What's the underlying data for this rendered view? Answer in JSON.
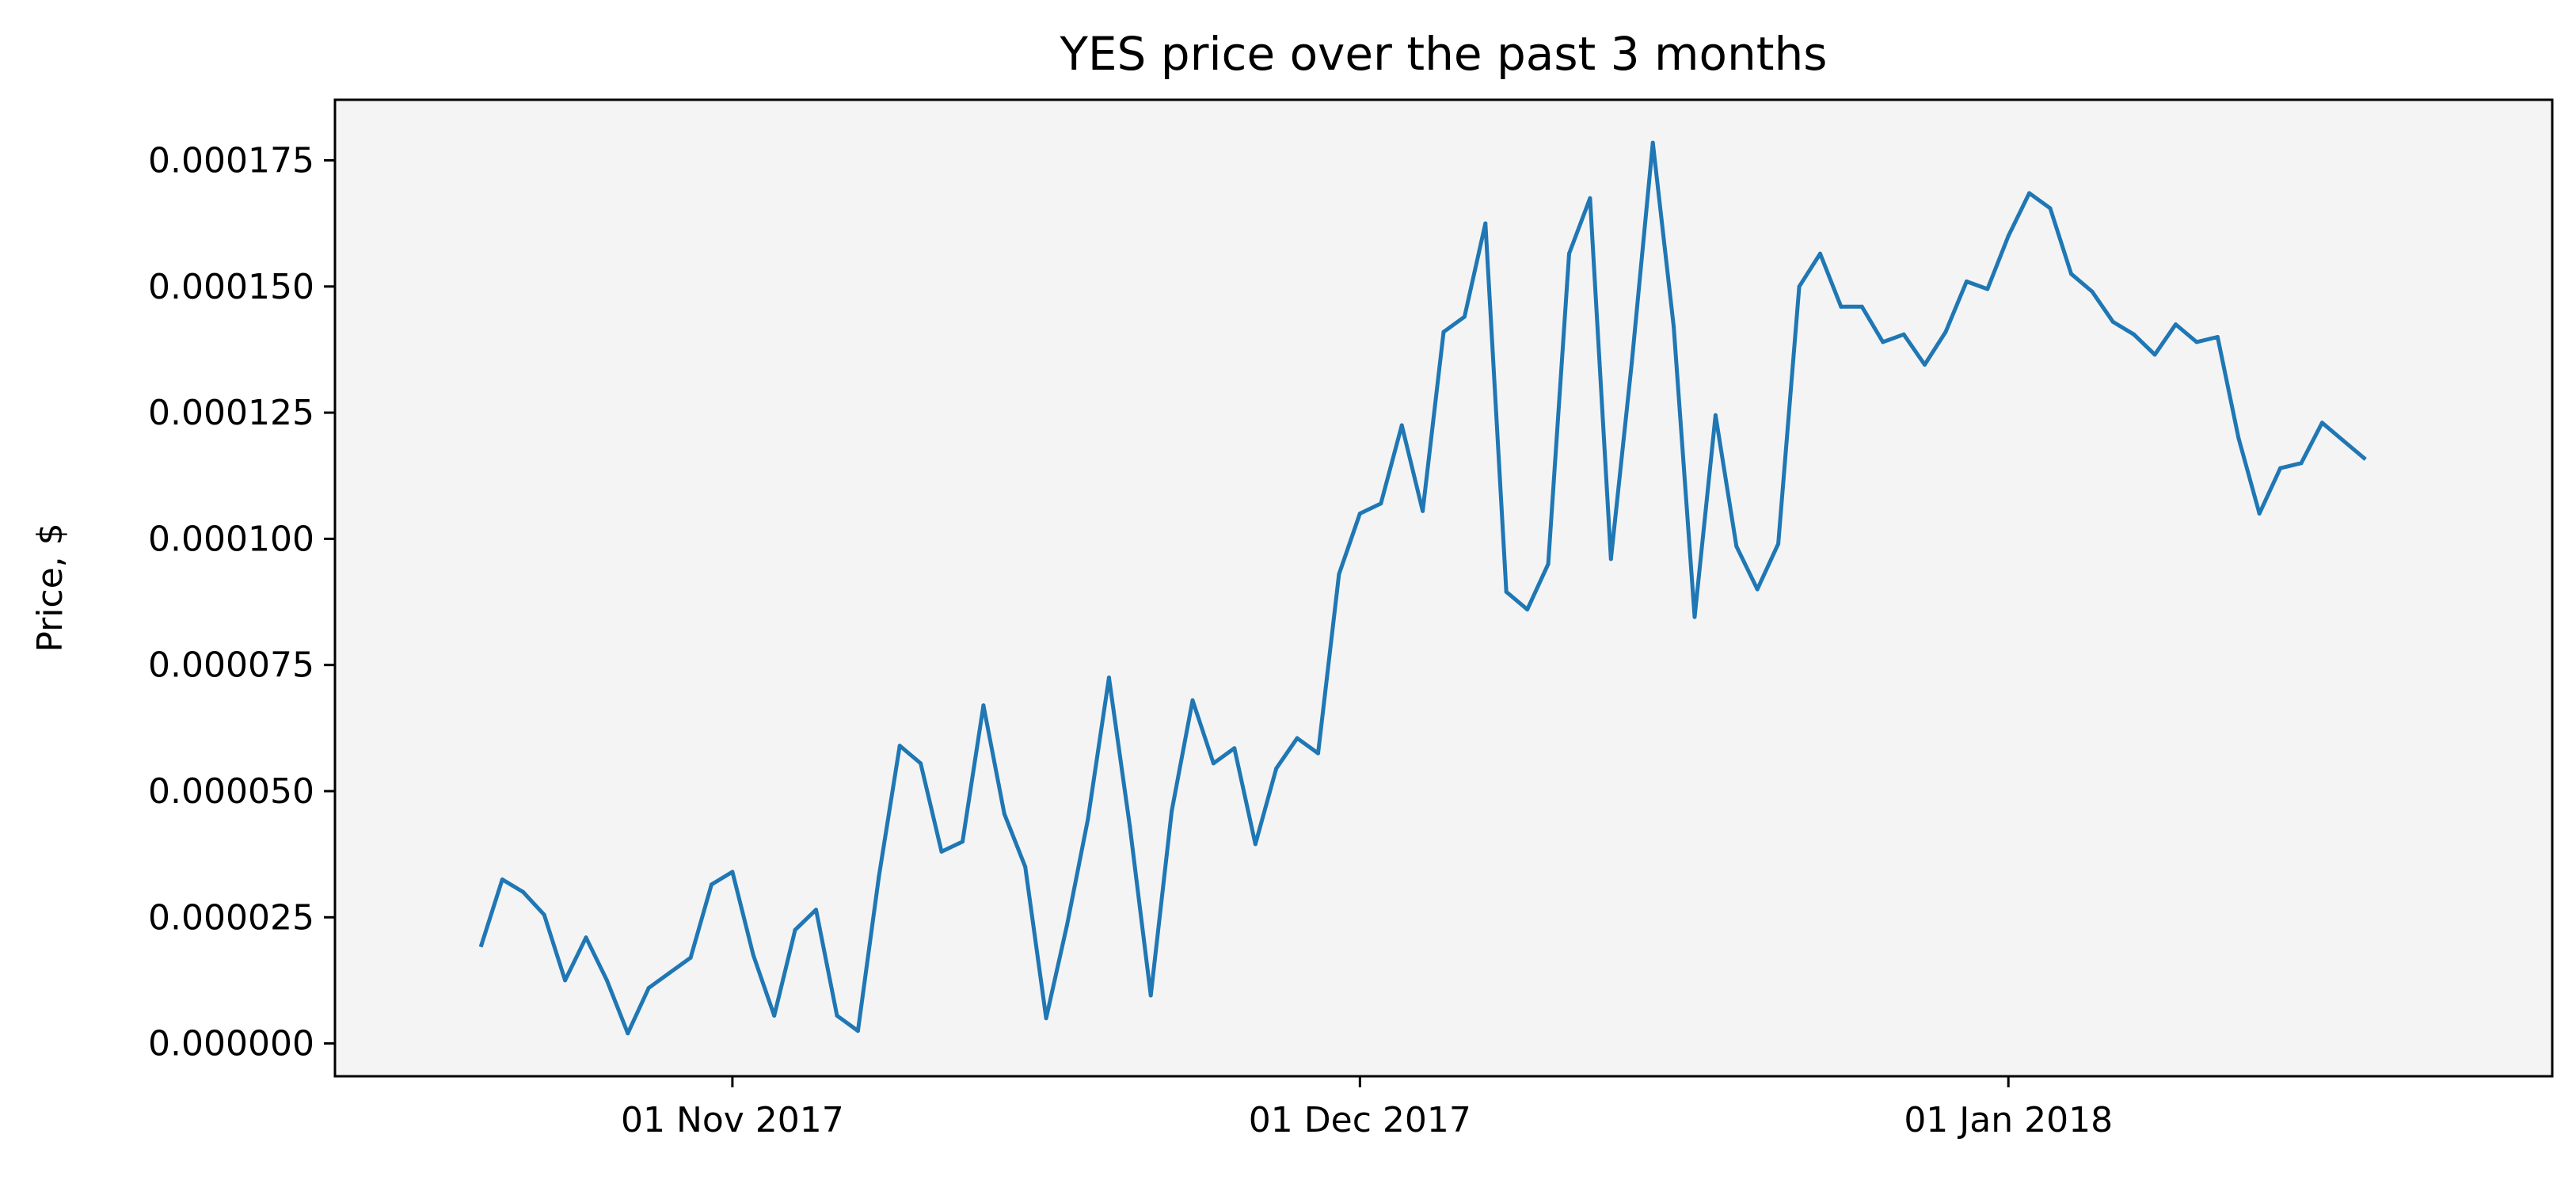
{
  "chart_data": {
    "type": "line",
    "title": "YES price over the past 3 months",
    "xlabel": "",
    "ylabel": "Price, $",
    "x_ticks": [
      {
        "date": "2017-11-01",
        "label": "01 Nov 2017"
      },
      {
        "date": "2017-12-01",
        "label": "01 Dec 2017"
      },
      {
        "date": "2018-01-01",
        "label": "01 Jan 2018"
      }
    ],
    "y_ticks": [
      {
        "value": 0.0,
        "label": "0.000000"
      },
      {
        "value": 2.5e-05,
        "label": "0.000025"
      },
      {
        "value": 5e-05,
        "label": "0.000050"
      },
      {
        "value": 7.5e-05,
        "label": "0.000075"
      },
      {
        "value": 0.0001,
        "label": "0.000100"
      },
      {
        "value": 0.000125,
        "label": "0.000125"
      },
      {
        "value": 0.00015,
        "label": "0.000150"
      },
      {
        "value": 0.000175,
        "label": "0.000175"
      }
    ],
    "xlim": [
      "2017-10-13",
      "2018-01-27"
    ],
    "ylim": [
      -6.5e-06,
      0.000187
    ],
    "grid": false,
    "colors": {
      "line": "#1f77b4",
      "plot_background": "#f4f4f4",
      "axes": "#000000"
    },
    "series": [
      {
        "points": [
          [
            "2017-10-20",
            1.95e-05
          ],
          [
            "2017-10-21",
            3.25e-05
          ],
          [
            "2017-10-22",
            3e-05
          ],
          [
            "2017-10-23",
            2.55e-05
          ],
          [
            "2017-10-24",
            1.25e-05
          ],
          [
            "2017-10-25",
            2.1e-05
          ],
          [
            "2017-10-26",
            1.25e-05
          ],
          [
            "2017-10-27",
            2e-06
          ],
          [
            "2017-10-28",
            1.1e-05
          ],
          [
            "2017-10-29",
            1.4e-05
          ],
          [
            "2017-10-30",
            1.7e-05
          ],
          [
            "2017-10-31",
            3.15e-05
          ],
          [
            "2017-11-01",
            3.4e-05
          ],
          [
            "2017-11-02",
            1.75e-05
          ],
          [
            "2017-11-03",
            5.5e-06
          ],
          [
            "2017-11-04",
            2.25e-05
          ],
          [
            "2017-11-05",
            2.65e-05
          ],
          [
            "2017-11-06",
            5.5e-06
          ],
          [
            "2017-11-07",
            2.5e-06
          ],
          [
            "2017-11-08",
            3.3e-05
          ],
          [
            "2017-11-09",
            5.9e-05
          ],
          [
            "2017-11-10",
            5.55e-05
          ],
          [
            "2017-11-11",
            3.8e-05
          ],
          [
            "2017-11-12",
            4e-05
          ],
          [
            "2017-11-13",
            6.7e-05
          ],
          [
            "2017-11-14",
            4.55e-05
          ],
          [
            "2017-11-15",
            3.5e-05
          ],
          [
            "2017-11-16",
            5e-06
          ],
          [
            "2017-11-17",
            2.35e-05
          ],
          [
            "2017-11-18",
            4.45e-05
          ],
          [
            "2017-11-19",
            7.25e-05
          ],
          [
            "2017-11-20",
            4.3e-05
          ],
          [
            "2017-11-21",
            9.5e-06
          ],
          [
            "2017-11-22",
            4.6e-05
          ],
          [
            "2017-11-23",
            6.8e-05
          ],
          [
            "2017-11-24",
            5.55e-05
          ],
          [
            "2017-11-25",
            5.85e-05
          ],
          [
            "2017-11-26",
            3.95e-05
          ],
          [
            "2017-11-27",
            5.45e-05
          ],
          [
            "2017-11-28",
            6.05e-05
          ],
          [
            "2017-11-29",
            5.75e-05
          ],
          [
            "2017-11-30",
            9.3e-05
          ],
          [
            "2017-12-01",
            0.000105
          ],
          [
            "2017-12-02",
            0.000107
          ],
          [
            "2017-12-03",
            0.0001225
          ],
          [
            "2017-12-04",
            0.0001055
          ],
          [
            "2017-12-05",
            0.000141
          ],
          [
            "2017-12-06",
            0.000144
          ],
          [
            "2017-12-07",
            0.0001625
          ],
          [
            "2017-12-08",
            8.95e-05
          ],
          [
            "2017-12-09",
            8.6e-05
          ],
          [
            "2017-12-10",
            9.5e-05
          ],
          [
            "2017-12-11",
            0.0001565
          ],
          [
            "2017-12-12",
            0.0001675
          ],
          [
            "2017-12-13",
            9.6e-05
          ],
          [
            "2017-12-14",
            0.000135
          ],
          [
            "2017-12-15",
            0.0001785
          ],
          [
            "2017-12-16",
            0.000142
          ],
          [
            "2017-12-17",
            8.45e-05
          ],
          [
            "2017-12-18",
            0.0001245
          ],
          [
            "2017-12-19",
            9.85e-05
          ],
          [
            "2017-12-20",
            9e-05
          ],
          [
            "2017-12-21",
            9.9e-05
          ],
          [
            "2017-12-22",
            0.00015
          ],
          [
            "2017-12-23",
            0.0001565
          ],
          [
            "2017-12-24",
            0.000146
          ],
          [
            "2017-12-25",
            0.000146
          ],
          [
            "2017-12-26",
            0.000139
          ],
          [
            "2017-12-27",
            0.0001405
          ],
          [
            "2017-12-28",
            0.0001345
          ],
          [
            "2017-12-29",
            0.000141
          ],
          [
            "2017-12-30",
            0.000151
          ],
          [
            "2017-12-31",
            0.0001495
          ],
          [
            "2018-01-01",
            0.00016
          ],
          [
            "2018-01-02",
            0.0001685
          ],
          [
            "2018-01-03",
            0.0001655
          ],
          [
            "2018-01-04",
            0.0001525
          ],
          [
            "2018-01-05",
            0.000149
          ],
          [
            "2018-01-06",
            0.000143
          ],
          [
            "2018-01-07",
            0.0001405
          ],
          [
            "2018-01-08",
            0.0001365
          ],
          [
            "2018-01-09",
            0.0001425
          ],
          [
            "2018-01-10",
            0.000139
          ],
          [
            "2018-01-11",
            0.00014
          ],
          [
            "2018-01-12",
            0.00012
          ],
          [
            "2018-01-13",
            0.000105
          ],
          [
            "2018-01-14",
            0.000114
          ],
          [
            "2018-01-15",
            0.000115
          ],
          [
            "2018-01-16",
            0.000123
          ],
          [
            "2018-01-17",
            0.0001195
          ],
          [
            "2018-01-18",
            0.000116
          ]
        ]
      }
    ]
  }
}
